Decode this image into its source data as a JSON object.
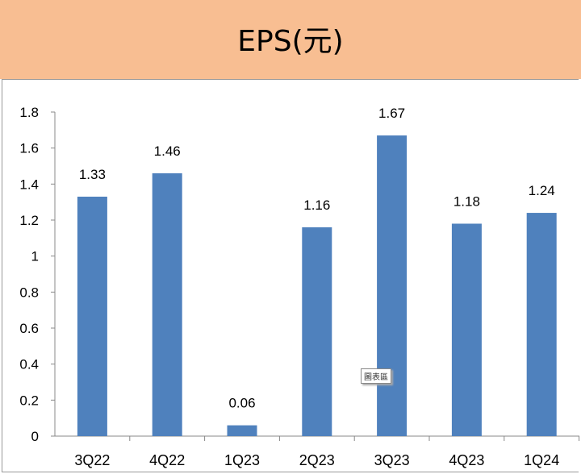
{
  "header": {
    "title": "EPS(元)",
    "color": "#f8be92"
  },
  "tooltip": "圖表區",
  "chart_data": {
    "type": "bar",
    "title": "EPS(元)",
    "categories": [
      "3Q22",
      "4Q22",
      "1Q23",
      "2Q23",
      "3Q23",
      "4Q23",
      "1Q24"
    ],
    "values": [
      1.33,
      1.46,
      0.06,
      1.16,
      1.67,
      1.18,
      1.24
    ],
    "ylim": [
      0,
      1.8
    ],
    "yticks": [
      "0",
      "0.2",
      "0.4",
      "0.6",
      "0.8",
      "1",
      "1.2",
      "1.4",
      "1.6",
      "1.8"
    ],
    "grid": false,
    "bar_color": "#4f81bd",
    "xlabel": "",
    "ylabel": ""
  }
}
